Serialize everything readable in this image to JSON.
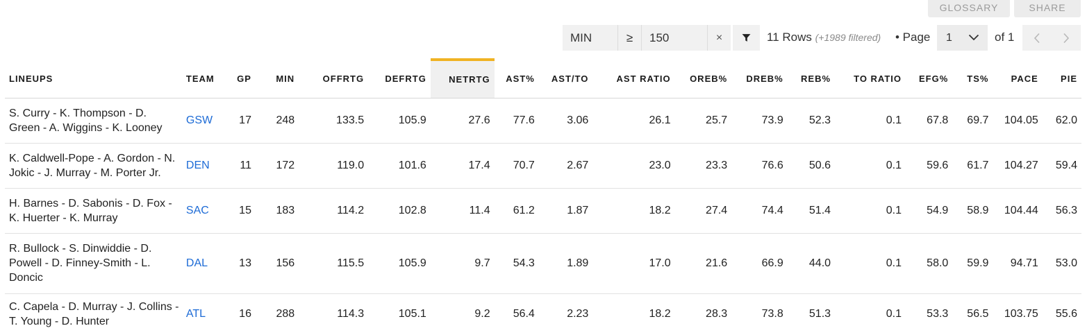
{
  "top_buttons": {
    "glossary": "GLOSSARY",
    "share": "SHARE"
  },
  "filter": {
    "field": "MIN",
    "operator": "≥",
    "value": "150",
    "clear": "×"
  },
  "rows_info": {
    "count": "11 Rows",
    "filtered": "(+1989 filtered)"
  },
  "pagination": {
    "label": "• Page",
    "current": "1",
    "of": "of 1"
  },
  "table": {
    "headers": [
      "LINEUPS",
      "TEAM",
      "GP",
      "MIN",
      "OFFRTG",
      "DEFRTG",
      "NETRTG",
      "AST%",
      "AST/TO",
      "AST RATIO",
      "OREB%",
      "DREB%",
      "REB%",
      "TO RATIO",
      "EFG%",
      "TS%",
      "PACE",
      "PIE"
    ],
    "sorted_column": "NETRTG",
    "rows": [
      [
        "S. Curry - K. Thompson - D. Green - A. Wiggins - K. Looney",
        "GSW",
        "17",
        "248",
        "133.5",
        "105.9",
        "27.6",
        "77.6",
        "3.06",
        "26.1",
        "25.7",
        "73.9",
        "52.3",
        "0.1",
        "67.8",
        "69.7",
        "104.05",
        "62.0"
      ],
      [
        "K. Caldwell-Pope - A. Gordon - N. Jokic - J. Murray - M. Porter Jr.",
        "DEN",
        "11",
        "172",
        "119.0",
        "101.6",
        "17.4",
        "70.7",
        "2.67",
        "23.0",
        "23.3",
        "76.6",
        "50.6",
        "0.1",
        "59.6",
        "61.7",
        "104.27",
        "59.4"
      ],
      [
        "H. Barnes - D. Sabonis - D. Fox - K. Huerter - K. Murray",
        "SAC",
        "15",
        "183",
        "114.2",
        "102.8",
        "11.4",
        "61.2",
        "1.87",
        "18.2",
        "27.4",
        "74.4",
        "51.4",
        "0.1",
        "54.9",
        "58.9",
        "104.44",
        "56.3"
      ],
      [
        "R. Bullock - S. Dinwiddie - D. Powell - D. Finney-Smith - L. Doncic",
        "DAL",
        "13",
        "156",
        "115.5",
        "105.9",
        "9.7",
        "54.3",
        "1.89",
        "17.0",
        "21.6",
        "66.9",
        "44.0",
        "0.1",
        "58.0",
        "59.9",
        "94.71",
        "53.0"
      ],
      [
        "C. Capela - D. Murray - J. Collins - T. Young - D. Hunter",
        "ATL",
        "16",
        "288",
        "114.3",
        "105.1",
        "9.2",
        "56.4",
        "2.23",
        "18.2",
        "28.3",
        "73.8",
        "51.3",
        "0.1",
        "53.3",
        "56.5",
        "103.75",
        "55.6"
      ]
    ]
  },
  "colors": {
    "team_link": "#1d6bd6",
    "sort_accent": "#f0b323",
    "control_bg": "#f1f1f1"
  },
  "icons": {
    "filter": "funnel-icon",
    "clear": "close-icon",
    "dropdown": "chevron-down-icon",
    "prev": "chevron-left-icon",
    "next": "chevron-right-icon"
  }
}
